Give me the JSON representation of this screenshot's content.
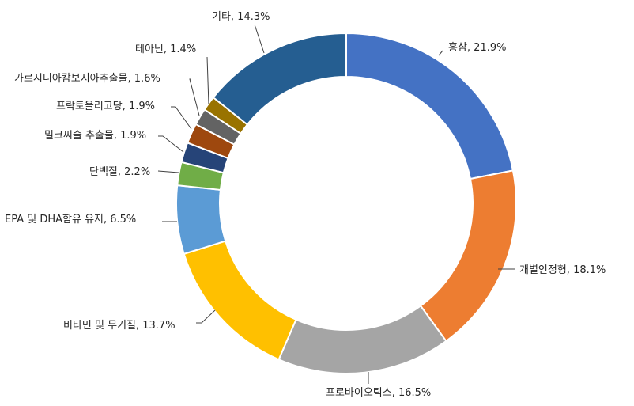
{
  "chart_data": {
    "type": "pie",
    "variant": "donut",
    "title": "",
    "start_angle_deg": 0,
    "direction": "clockwise",
    "slices": [
      {
        "label": "홍삼",
        "value": 21.9,
        "display": "홍삼, 21.9%",
        "color": "#4472C4"
      },
      {
        "label": "개별인정형",
        "value": 18.1,
        "display": "개별인정형, 18.1%",
        "color": "#ED7D31"
      },
      {
        "label": "프로바이오틱스",
        "value": 16.5,
        "display": "프로바이오틱스, 16.5%",
        "color": "#A5A5A5"
      },
      {
        "label": "비타민 및 무기질",
        "value": 13.7,
        "display": "비타민 및 무기질, 13.7%",
        "color": "#FFC000"
      },
      {
        "label": "EPA 및 DHA함유 유지",
        "value": 6.5,
        "display": "EPA 및 DHA함유 유지, 6.5%",
        "color": "#5B9BD5"
      },
      {
        "label": "단백질",
        "value": 2.2,
        "display": "단백질, 2.2%",
        "color": "#70AD47"
      },
      {
        "label": "밀크씨슬 추출물",
        "value": 1.9,
        "display": "밀크씨슬 추출물, 1.9%",
        "color": "#264478"
      },
      {
        "label": "프락토올리고당",
        "value": 1.9,
        "display": "프락토올리고당, 1.9%",
        "color": "#9E480E"
      },
      {
        "label": "가르시니아캄보지아추출물",
        "value": 1.6,
        "display": "가르시니아캄보지아추출물, 1.6%",
        "color": "#636363"
      },
      {
        "label": "테아닌",
        "value": 1.4,
        "display": "테아닌, 1.4%",
        "color": "#997300"
      },
      {
        "label": "기타",
        "value": 14.3,
        "display": "기타, 14.3%",
        "color": "#255E91"
      }
    ]
  }
}
